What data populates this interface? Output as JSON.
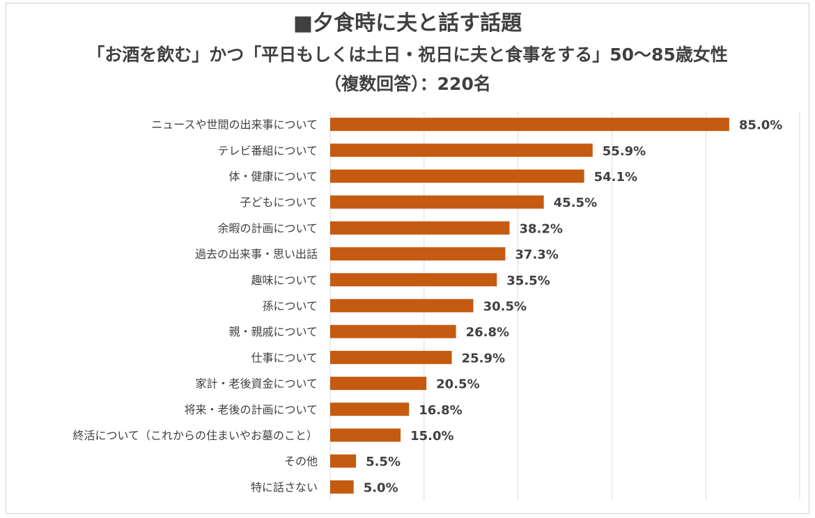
{
  "title": "■夕食時に夫と話す話題",
  "subtitle": "「お酒を飲む」かつ「平日もしくは土日・祝日に夫と食事をする」50〜85歳女性",
  "subtitle2": "（複数回答）：220名",
  "colors": {
    "bar": "#c55a11",
    "grid": "#d9d9d9",
    "text": "#404040"
  },
  "chart_data": {
    "type": "bar",
    "orientation": "horizontal",
    "title": "■夕食時に夫と話す話題",
    "subtitle": "「お酒を飲む」かつ「平日もしくは土日・祝日に夫と食事をする」50〜85歳女性（複数回答）：220名",
    "xlabel": "",
    "ylabel": "",
    "xlim": [
      0,
      100
    ],
    "grid": true,
    "legend": "none",
    "categories": [
      "ニュースや世間の出来事について",
      "テレビ番組について",
      "体・健康について",
      "子どもについて",
      "余暇の計画について",
      "過去の出来事・思い出話",
      "趣味について",
      "孫について",
      "親・親戚について",
      "仕事について",
      "家計・老後資金について",
      "将来・老後の計画について",
      "終活について（これからの住まいやお墓のこと）",
      "その他",
      "特に話さない"
    ],
    "values": [
      85.0,
      55.9,
      54.1,
      45.5,
      38.2,
      37.3,
      35.5,
      30.5,
      26.8,
      25.9,
      20.5,
      16.8,
      15.0,
      5.5,
      5.0
    ],
    "value_labels": [
      "85.0%",
      "55.9%",
      "54.1%",
      "45.5%",
      "38.2%",
      "37.3%",
      "35.5%",
      "30.5%",
      "26.8%",
      "25.9%",
      "20.5%",
      "16.8%",
      "15.0%",
      "5.5%",
      "5.0%"
    ]
  }
}
